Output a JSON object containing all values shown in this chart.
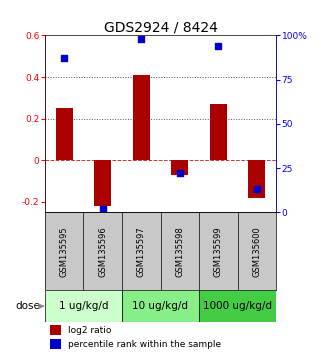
{
  "title": "GDS2924 / 8424",
  "samples": [
    "GSM135595",
    "GSM135596",
    "GSM135597",
    "GSM135598",
    "GSM135599",
    "GSM135600"
  ],
  "log2_ratio": [
    0.25,
    -0.22,
    0.41,
    -0.07,
    0.27,
    -0.18
  ],
  "percentile_rank_right": [
    87,
    2,
    98,
    22,
    94,
    13
  ],
  "dose_groups": [
    {
      "label": "1 ug/kg/d",
      "samples": [
        0,
        1
      ],
      "color": "#ccffcc"
    },
    {
      "label": "10 ug/kg/d",
      "samples": [
        2,
        3
      ],
      "color": "#88ee88"
    },
    {
      "label": "1000 ug/kg/d",
      "samples": [
        4,
        5
      ],
      "color": "#44cc44"
    }
  ],
  "bar_color": "#aa0000",
  "dot_color": "#0000cc",
  "ylim_left": [
    -0.25,
    0.6
  ],
  "ylim_right": [
    0,
    100
  ],
  "yticks_left": [
    -0.2,
    0.0,
    0.2,
    0.4,
    0.6
  ],
  "yticks_right": [
    0,
    25,
    50,
    75,
    100
  ],
  "zero_line_color": "#cc3333",
  "dotted_line_color": "#555555",
  "legend_bar": "log2 ratio",
  "legend_dot": "percentile rank within the sample",
  "background_color": "#ffffff",
  "label_row_bg": "#c8c8c8",
  "title_fontsize": 10,
  "tick_fontsize": 6.5,
  "sample_fontsize": 6,
  "dose_fontsize": 7.5,
  "legend_fontsize": 6.5
}
